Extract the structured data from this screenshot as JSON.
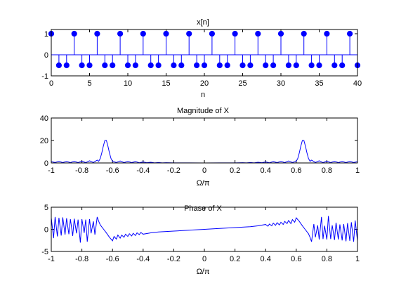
{
  "figure": {
    "background": "#ffffff",
    "axes_color": "#000000",
    "line_color": "#0000ff"
  },
  "chart_data": [
    {
      "type": "stem",
      "title": "x[n]",
      "xlabel": "n",
      "ylabel": "",
      "xlim": [
        0,
        40
      ],
      "ylim": [
        -1,
        1.2
      ],
      "xticks": [
        0,
        5,
        10,
        15,
        20,
        25,
        30,
        35,
        40
      ],
      "yticks": [
        -1,
        0,
        1
      ],
      "marker": "filled-circle",
      "x": [
        0,
        1,
        2,
        3,
        4,
        5,
        6,
        7,
        8,
        9,
        10,
        11,
        12,
        13,
        14,
        15,
        16,
        17,
        18,
        19,
        20,
        21,
        22,
        23,
        24,
        25,
        26,
        27,
        28,
        29,
        30,
        31,
        32,
        33,
        34,
        35,
        36,
        37,
        38,
        39,
        40
      ],
      "y": [
        1,
        -0.5,
        -0.5,
        1,
        -0.5,
        -0.5,
        1,
        -0.5,
        -0.5,
        1,
        -0.5,
        -0.5,
        1,
        -0.5,
        -0.5,
        1,
        -0.5,
        -0.5,
        1,
        -0.5,
        -0.5,
        1,
        -0.5,
        -0.5,
        1,
        -0.5,
        -0.5,
        1,
        -0.5,
        -0.5,
        1,
        -0.5,
        -0.5,
        1,
        -0.5,
        -0.5,
        1,
        -0.5,
        -0.5,
        1,
        -0.5
      ]
    },
    {
      "type": "line",
      "title": "Magnitude of X",
      "xlabel": "Ω/π",
      "ylabel": "",
      "xlim": [
        -1,
        1
      ],
      "ylim": [
        0,
        40
      ],
      "xticks": [
        -1,
        -0.8,
        -0.6,
        -0.4,
        -0.2,
        0,
        0.2,
        0.4,
        0.6,
        0.8,
        1
      ],
      "yticks": [
        0,
        20,
        40
      ],
      "x": [
        -1,
        -0.975,
        -0.95,
        -0.925,
        -0.9,
        -0.875,
        -0.85,
        -0.825,
        -0.8,
        -0.775,
        -0.75,
        -0.725,
        -0.7,
        -0.69,
        -0.68,
        -0.67,
        -0.66,
        -0.65,
        -0.64,
        -0.63,
        -0.62,
        -0.61,
        -0.6,
        -0.575,
        -0.55,
        -0.525,
        -0.5,
        -0.475,
        -0.45,
        -0.425,
        -0.4,
        -0.375,
        -0.35,
        -0.325,
        -0.3,
        -0.275,
        -0.25,
        -0.2,
        -0.1,
        0,
        0.1,
        0.2,
        0.25,
        0.275,
        0.3,
        0.325,
        0.35,
        0.375,
        0.4,
        0.425,
        0.45,
        0.475,
        0.5,
        0.525,
        0.55,
        0.575,
        0.6,
        0.61,
        0.62,
        0.63,
        0.64,
        0.65,
        0.66,
        0.67,
        0.68,
        0.69,
        0.7,
        0.725,
        0.75,
        0.775,
        0.8,
        0.825,
        0.85,
        0.875,
        0.9,
        0.925,
        0.95,
        0.975,
        1
      ],
      "y": [
        1.2,
        0.4,
        1.5,
        0.3,
        1.4,
        0.3,
        1.5,
        0.3,
        1.6,
        0.3,
        1.9,
        0.4,
        2.5,
        1.5,
        4,
        9,
        15,
        20,
        20,
        15,
        9,
        4,
        1.5,
        0.4,
        1.8,
        0.3,
        1.4,
        0.3,
        1.2,
        0.2,
        0.9,
        0.2,
        0.6,
        0.1,
        0.4,
        0.1,
        0.2,
        0.1,
        0.05,
        0,
        0.05,
        0.1,
        0.2,
        0.1,
        0.4,
        0.1,
        0.6,
        0.2,
        0.9,
        0.2,
        1.2,
        0.3,
        1.4,
        0.3,
        1.8,
        0.4,
        1.5,
        4,
        9,
        15,
        20,
        20,
        15,
        9,
        4,
        1.5,
        2.5,
        0.4,
        1.9,
        0.3,
        1.6,
        0.3,
        1.5,
        0.3,
        1.4,
        0.3,
        1.5,
        0.4,
        1.2
      ]
    },
    {
      "type": "line",
      "title": "Phase of X",
      "xlabel": "Ω/π",
      "ylabel": "",
      "xlim": [
        -1,
        1
      ],
      "ylim": [
        -5,
        5
      ],
      "xticks": [
        -1,
        -0.8,
        -0.6,
        -0.4,
        -0.2,
        0,
        0.2,
        0.4,
        0.6,
        0.8,
        1
      ],
      "yticks": [
        -5,
        0,
        5
      ],
      "x": [
        -1,
        -0.985,
        -0.975,
        -0.96,
        -0.95,
        -0.935,
        -0.925,
        -0.91,
        -0.9,
        -0.885,
        -0.875,
        -0.86,
        -0.85,
        -0.835,
        -0.825,
        -0.81,
        -0.8,
        -0.785,
        -0.775,
        -0.765,
        -0.75,
        -0.74,
        -0.725,
        -0.715,
        -0.7,
        -0.69,
        -0.68,
        -0.66,
        -0.64,
        -0.62,
        -0.6,
        -0.59,
        -0.575,
        -0.565,
        -0.55,
        -0.54,
        -0.525,
        -0.515,
        -0.5,
        -0.49,
        -0.475,
        -0.465,
        -0.45,
        -0.44,
        -0.425,
        -0.415,
        -0.4,
        -0.35,
        -0.3,
        -0.25,
        -0.2,
        -0.1,
        0,
        0.1,
        0.2,
        0.25,
        0.3,
        0.35,
        0.4,
        0.415,
        0.425,
        0.44,
        0.45,
        0.465,
        0.475,
        0.49,
        0.5,
        0.515,
        0.525,
        0.54,
        0.55,
        0.565,
        0.575,
        0.59,
        0.6,
        0.62,
        0.64,
        0.66,
        0.68,
        0.69,
        0.7,
        0.715,
        0.725,
        0.74,
        0.75,
        0.765,
        0.775,
        0.785,
        0.8,
        0.81,
        0.825,
        0.835,
        0.85,
        0.86,
        0.875,
        0.885,
        0.9,
        0.91,
        0.925,
        0.935,
        0.95,
        0.96,
        0.975,
        0.985,
        1
      ],
      "y": [
        2.6,
        -2,
        2.8,
        -1.6,
        2.6,
        -1.4,
        2.7,
        -1.2,
        2.5,
        -1.1,
        2.3,
        -1.5,
        2.4,
        -0.9,
        2.2,
        -3,
        2.3,
        -0.8,
        2.2,
        -2.8,
        2.3,
        -0.9,
        1.8,
        -1.2,
        2.8,
        1.8,
        1,
        0.1,
        -0.8,
        -1.8,
        -2.6,
        -1.6,
        -2.2,
        -1.3,
        -2.0,
        -1.3,
        -1.8,
        -1.1,
        -1.6,
        -1.0,
        -1.5,
        -0.9,
        -1.4,
        -0.8,
        -1.2,
        -0.7,
        -1.1,
        -0.8,
        -0.6,
        -0.5,
        -0.4,
        -0.2,
        0,
        0.2,
        0.4,
        0.5,
        0.6,
        0.8,
        1.1,
        0.7,
        1.2,
        0.8,
        1.4,
        0.9,
        1.5,
        1.0,
        1.6,
        1.1,
        1.8,
        1.3,
        2.0,
        1.3,
        2.2,
        1.6,
        2.6,
        1.8,
        0.8,
        -0.1,
        -1,
        -1.8,
        -2.8,
        1.2,
        -1.8,
        0.9,
        -2.3,
        2.8,
        -2.2,
        0.8,
        -2.3,
        3,
        -2.2,
        0.9,
        -2.4,
        1.5,
        -2.3,
        1.1,
        -2.5,
        1.2,
        -2.7,
        1.4,
        -2.6,
        1.6,
        -2.8,
        2,
        -2.6
      ]
    }
  ]
}
